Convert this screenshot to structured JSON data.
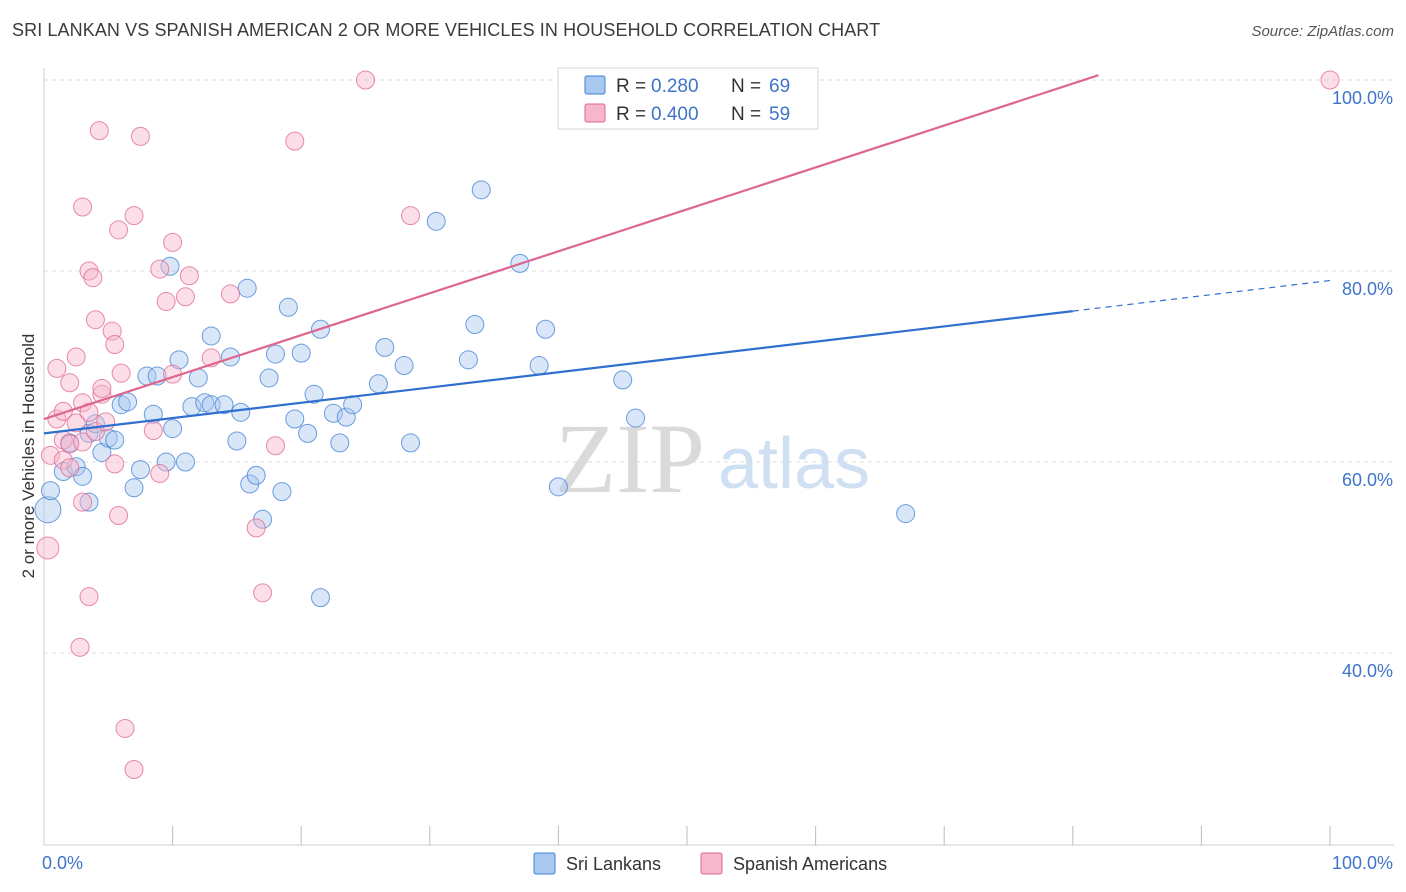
{
  "title": "SRI LANKAN VS SPANISH AMERICAN 2 OR MORE VEHICLES IN HOUSEHOLD CORRELATION CHART",
  "source": "Source: ZipAtlas.com",
  "watermark": {
    "zip": "ZIP",
    "atlas": "atlas"
  },
  "colors": {
    "blue": "#3f7fd6",
    "blue_fill": "#a9c8f0",
    "pink": "#e0668f",
    "pink_fill": "#f6b6cb",
    "tick": "#3f74c9"
  },
  "chart_data": {
    "type": "scatter",
    "xlabel": "",
    "ylabel": "2 or more Vehicles in Household",
    "xlim": [
      0,
      100
    ],
    "ylim": [
      20,
      102
    ],
    "x_tick_labels": [
      {
        "value": 0,
        "label": "0.0%"
      },
      {
        "value": 100,
        "label": "100.0%"
      }
    ],
    "y_tick_labels": [
      {
        "value": 40,
        "label": "40.0%"
      },
      {
        "value": 60,
        "label": "60.0%"
      },
      {
        "value": 80,
        "label": "80.0%"
      },
      {
        "value": 100,
        "label": "100.0%"
      }
    ],
    "x_minor_ticks": [
      10,
      20,
      30,
      40,
      50,
      60,
      70,
      80,
      90
    ],
    "legend_position": "top-center",
    "series": [
      {
        "name": "Sri Lankans",
        "R": "0.280",
        "N": "69",
        "trend": {
          "x0": 0,
          "y0": 63.0,
          "x1": 80,
          "y1": 75.8,
          "dashed_to_x": 100,
          "dashed_to_y": 79.0
        },
        "points": [
          [
            0.3,
            55,
            14
          ],
          [
            0.5,
            57,
            10
          ],
          [
            1.5,
            59,
            10
          ],
          [
            2,
            62,
            10
          ],
          [
            2.5,
            59.5,
            10
          ],
          [
            3,
            58.5,
            10
          ],
          [
            3.5,
            55.8,
            10
          ],
          [
            3.5,
            63,
            10
          ],
          [
            4,
            64,
            10
          ],
          [
            4.5,
            61,
            10
          ],
          [
            5,
            62.5,
            10
          ],
          [
            5.5,
            62.3,
            10
          ],
          [
            6,
            66,
            10
          ],
          [
            6.5,
            66.3,
            10
          ],
          [
            7,
            57.3,
            10
          ],
          [
            7.5,
            59.2,
            10
          ],
          [
            8,
            69,
            10
          ],
          [
            8.5,
            65,
            10
          ],
          [
            8.8,
            69,
            10
          ],
          [
            9.5,
            60,
            10
          ],
          [
            9.8,
            80.5,
            10
          ],
          [
            10,
            63.5,
            10
          ],
          [
            10.5,
            70.7,
            10
          ],
          [
            11,
            60,
            10
          ],
          [
            11.5,
            65.8,
            10
          ],
          [
            12,
            68.8,
            10
          ],
          [
            12.5,
            66.2,
            10
          ],
          [
            13,
            66,
            10
          ],
          [
            13,
            73.2,
            10
          ],
          [
            14,
            66,
            10
          ],
          [
            14.5,
            71,
            10
          ],
          [
            15,
            62.2,
            10
          ],
          [
            15.3,
            65.2,
            10
          ],
          [
            15.8,
            78.2,
            10
          ],
          [
            16,
            57.7,
            10
          ],
          [
            16.5,
            58.6,
            10
          ],
          [
            17,
            54,
            10
          ],
          [
            17.5,
            68.8,
            10
          ],
          [
            18,
            71.3,
            10
          ],
          [
            18.5,
            56.9,
            10
          ],
          [
            19,
            76.2,
            10
          ],
          [
            19.5,
            64.5,
            10
          ],
          [
            20,
            71.4,
            10
          ],
          [
            20.5,
            63,
            10
          ],
          [
            21,
            67.1,
            10
          ],
          [
            21.5,
            45.8,
            10
          ],
          [
            21.5,
            73.9,
            10
          ],
          [
            22.5,
            65.1,
            10
          ],
          [
            23,
            62,
            10
          ],
          [
            23.5,
            64.7,
            10
          ],
          [
            24,
            66,
            10
          ],
          [
            26,
            68.2,
            10
          ],
          [
            26.5,
            72,
            10
          ],
          [
            28,
            70.1,
            10
          ],
          [
            28.5,
            62,
            10
          ],
          [
            30.5,
            85.2,
            10
          ],
          [
            33,
            70.7,
            10
          ],
          [
            33.5,
            74.4,
            10
          ],
          [
            34,
            88.5,
            10
          ],
          [
            37,
            80.8,
            10
          ],
          [
            38.5,
            70.1,
            10
          ],
          [
            39,
            73.9,
            10
          ],
          [
            40,
            57.4,
            10
          ],
          [
            45,
            68.6,
            10
          ],
          [
            46,
            64.6,
            10
          ],
          [
            67,
            54.6,
            10
          ]
        ]
      },
      {
        "name": "Spanish Americans",
        "R": "0.400",
        "N": "59",
        "trend": {
          "x0": 0,
          "y0": 64.5,
          "x1": 82,
          "y1": 100.5
        },
        "points": [
          [
            0.3,
            51,
            12
          ],
          [
            0.5,
            60.7,
            10
          ],
          [
            1,
            64.5,
            10
          ],
          [
            1,
            69.8,
            10
          ],
          [
            1.5,
            65.3,
            10
          ],
          [
            1.5,
            62.3,
            10
          ],
          [
            1.5,
            60.2,
            10
          ],
          [
            2,
            68.3,
            10
          ],
          [
            2,
            61.9,
            10
          ],
          [
            2,
            59.4,
            10
          ],
          [
            2.5,
            71,
            10
          ],
          [
            2.5,
            64.1,
            10
          ],
          [
            2.8,
            40.6,
            10
          ],
          [
            3,
            86.7,
            10
          ],
          [
            3,
            66.2,
            10
          ],
          [
            3,
            62.1,
            10
          ],
          [
            3,
            55.8,
            10
          ],
          [
            3.5,
            80,
            10
          ],
          [
            3.5,
            45.9,
            10
          ],
          [
            3.5,
            65.2,
            10
          ],
          [
            3.8,
            79.3,
            10
          ],
          [
            4,
            74.9,
            10
          ],
          [
            4,
            63.2,
            10
          ],
          [
            4.3,
            94.7,
            10
          ],
          [
            4.5,
            67.1,
            10
          ],
          [
            4.5,
            67.7,
            10
          ],
          [
            4.8,
            64.2,
            10
          ],
          [
            5.3,
            73.7,
            10
          ],
          [
            5.5,
            72.3,
            10
          ],
          [
            5.5,
            59.8,
            10
          ],
          [
            5.8,
            54.4,
            10
          ],
          [
            5.8,
            84.3,
            10
          ],
          [
            6,
            69.3,
            10
          ],
          [
            6.3,
            32.1,
            10
          ],
          [
            7,
            85.8,
            10
          ],
          [
            7,
            27.8,
            10
          ],
          [
            7.5,
            94.1,
            10
          ],
          [
            8.5,
            63.3,
            10
          ],
          [
            9,
            58.8,
            10
          ],
          [
            9,
            80.2,
            10
          ],
          [
            9.5,
            76.8,
            10
          ],
          [
            10,
            83,
            10
          ],
          [
            10,
            69.2,
            10
          ],
          [
            11,
            77.3,
            10
          ],
          [
            11.3,
            79.5,
            10
          ],
          [
            13,
            70.9,
            10
          ],
          [
            14.5,
            77.6,
            10
          ],
          [
            16.5,
            53.1,
            10
          ],
          [
            17,
            46.3,
            10
          ],
          [
            18,
            61.7,
            10
          ],
          [
            19.5,
            93.6,
            10
          ],
          [
            25,
            100,
            10
          ],
          [
            28.5,
            85.8,
            10
          ],
          [
            100,
            100,
            10
          ]
        ]
      }
    ]
  },
  "legend": {
    "r_label": "R =",
    "n_label": "N =",
    "items": [
      {
        "r": "0.280",
        "n": "69"
      },
      {
        "r": "0.400",
        "n": "59"
      }
    ]
  },
  "bottom_legend": [
    "Sri Lankans",
    "Spanish Americans"
  ]
}
